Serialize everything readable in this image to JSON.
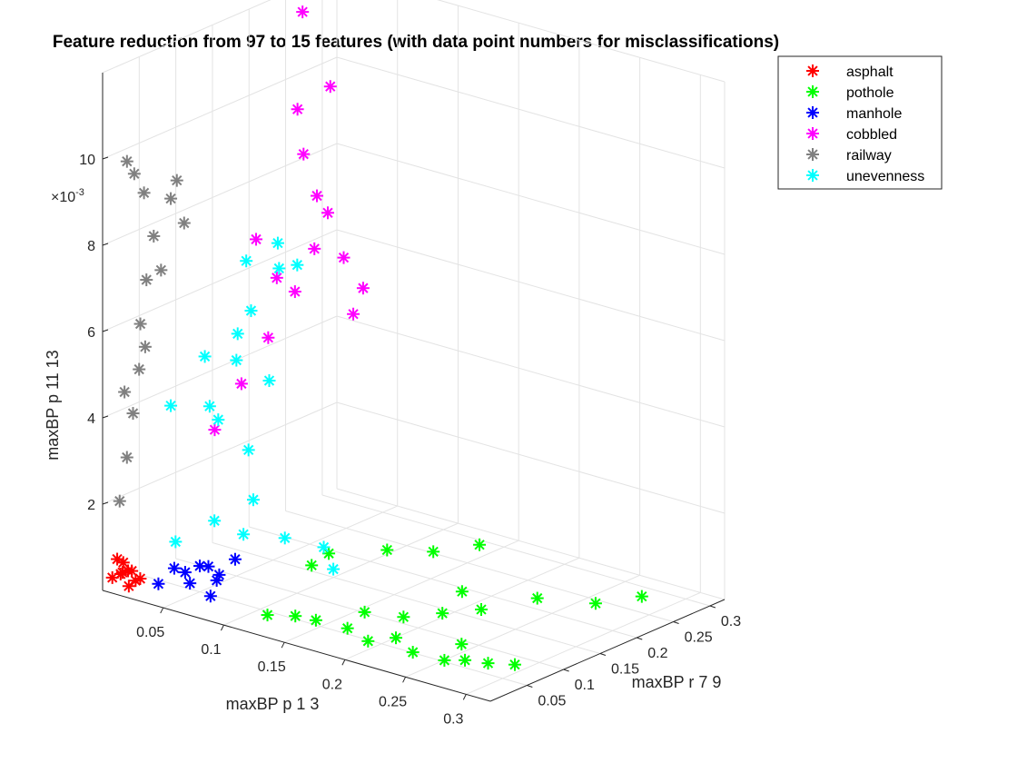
{
  "chart_data": {
    "type": "scatter",
    "title": "Feature reduction from 97 to 15 features (with data point numbers for misclassifications)",
    "xlabel": "maxBP p 1 3",
    "ylabel": "maxBP r 7 9",
    "zlabel": "maxBP p 11 13",
    "z_exponent_label": "×10",
    "z_exponent": "-3",
    "xlim": [
      0,
      0.32
    ],
    "ylim": [
      0,
      0.32
    ],
    "zlim": [
      0,
      0.012
    ],
    "x_ticks": [
      "0.05",
      "0.1",
      "0.15",
      "0.2",
      "0.25",
      "0.3"
    ],
    "y_ticks": [
      "0.05",
      "0.1",
      "0.15",
      "0.2",
      "0.25",
      "0.3"
    ],
    "z_ticks": [
      "2",
      "4",
      "6",
      "8",
      "10"
    ],
    "grid": true,
    "legend_position": "top-right",
    "marker": "asterisk",
    "series": [
      {
        "name": "asphalt",
        "color": "#ff0000",
        "points": [
          [
            0.005,
            0.005,
            0.0003
          ],
          [
            0.01,
            0.008,
            0.0004
          ],
          [
            0.015,
            0.01,
            0.0005
          ],
          [
            0.02,
            0.012,
            0.0003
          ],
          [
            0.008,
            0.015,
            0.0006
          ],
          [
            0.012,
            0.02,
            0.0004
          ],
          [
            0.018,
            0.006,
            0.0002
          ],
          [
            0.025,
            0.01,
            0.0004
          ],
          [
            0.006,
            0.01,
            0.0007
          ],
          [
            0.014,
            0.004,
            0.0005
          ]
        ]
      },
      {
        "name": "pothole",
        "color": "#00ff00",
        "points": [
          [
            0.13,
            0.01,
            0.0004
          ],
          [
            0.15,
            0.015,
            0.0005
          ],
          [
            0.17,
            0.01,
            0.0006
          ],
          [
            0.19,
            0.02,
            0.0005
          ],
          [
            0.21,
            0.015,
            0.0004
          ],
          [
            0.23,
            0.02,
            0.0006
          ],
          [
            0.25,
            0.01,
            0.0005
          ],
          [
            0.27,
            0.02,
            0.0004
          ],
          [
            0.29,
            0.015,
            0.0006
          ],
          [
            0.3,
            0.03,
            0.0005
          ],
          [
            0.31,
            0.05,
            0.0004
          ],
          [
            0.18,
            0.06,
            0.0005
          ],
          [
            0.2,
            0.08,
            0.0004
          ],
          [
            0.22,
            0.1,
            0.0005
          ],
          [
            0.24,
            0.12,
            0.0006
          ],
          [
            0.2,
            0.16,
            0.0004
          ],
          [
            0.25,
            0.18,
            0.0005
          ],
          [
            0.28,
            0.21,
            0.0004
          ],
          [
            0.3,
            0.24,
            0.0005
          ],
          [
            0.1,
            0.12,
            0.0005
          ],
          [
            0.09,
            0.16,
            0.0004
          ],
          [
            0.12,
            0.19,
            0.0005
          ],
          [
            0.14,
            0.22,
            0.0004
          ],
          [
            0.16,
            0.25,
            0.0005
          ],
          [
            0.26,
            0.06,
            0.0004
          ]
        ]
      },
      {
        "name": "manhole",
        "color": "#0000ff",
        "points": [
          [
            0.04,
            0.01,
            0.0004
          ],
          [
            0.06,
            0.02,
            0.0005
          ],
          [
            0.08,
            0.015,
            0.0004
          ],
          [
            0.05,
            0.03,
            0.0006
          ],
          [
            0.07,
            0.04,
            0.0005
          ],
          [
            0.06,
            0.06,
            0.0004
          ],
          [
            0.05,
            0.05,
            0.0006
          ],
          [
            0.035,
            0.04,
            0.0005
          ],
          [
            0.045,
            0.07,
            0.0004
          ],
          [
            0.055,
            0.09,
            0.0005
          ]
        ]
      },
      {
        "name": "cobbled",
        "color": "#ff00ff",
        "points": [
          [
            0.02,
            0.12,
            0.003
          ],
          [
            0.03,
            0.14,
            0.004
          ],
          [
            0.04,
            0.16,
            0.005
          ],
          [
            0.05,
            0.18,
            0.006
          ],
          [
            0.06,
            0.19,
            0.007
          ],
          [
            0.05,
            0.21,
            0.008
          ],
          [
            0.045,
            0.2,
            0.009
          ],
          [
            0.04,
            0.2,
            0.01
          ],
          [
            0.06,
            0.23,
            0.0065
          ],
          [
            0.07,
            0.24,
            0.0058
          ],
          [
            0.08,
            0.21,
            0.0055
          ],
          [
            0.03,
            0.16,
            0.0072
          ],
          [
            0.055,
            0.22,
            0.0105
          ],
          [
            0.02,
            0.24,
            0.0118
          ],
          [
            0.065,
            0.2,
            0.0078
          ],
          [
            0.035,
            0.18,
            0.0062
          ]
        ]
      },
      {
        "name": "railway",
        "color": "#808080",
        "points": [
          [
            0.005,
            0.015,
            0.002
          ],
          [
            0.008,
            0.02,
            0.003
          ],
          [
            0.01,
            0.025,
            0.004
          ],
          [
            0.012,
            0.03,
            0.005
          ],
          [
            0.01,
            0.035,
            0.006
          ],
          [
            0.012,
            0.04,
            0.007
          ],
          [
            0.015,
            0.045,
            0.008
          ],
          [
            0.01,
            0.04,
            0.009
          ],
          [
            0.008,
            0.03,
            0.0095
          ],
          [
            0.005,
            0.025,
            0.0098
          ],
          [
            0.02,
            0.06,
            0.0088
          ],
          [
            0.025,
            0.07,
            0.0082
          ],
          [
            0.022,
            0.065,
            0.0092
          ],
          [
            0.018,
            0.05,
            0.0072
          ],
          [
            0.006,
            0.02,
            0.0045
          ],
          [
            0.014,
            0.035,
            0.0055
          ]
        ]
      },
      {
        "name": "unevenness",
        "color": "#00ffff",
        "points": [
          [
            0.03,
            0.05,
            0.001
          ],
          [
            0.05,
            0.07,
            0.0015
          ],
          [
            0.07,
            0.09,
            0.002
          ],
          [
            0.06,
            0.1,
            0.003
          ],
          [
            0.04,
            0.08,
            0.004
          ],
          [
            0.05,
            0.1,
            0.005
          ],
          [
            0.05,
            0.12,
            0.006
          ],
          [
            0.04,
            0.13,
            0.007
          ],
          [
            0.06,
            0.14,
            0.0075
          ],
          [
            0.07,
            0.15,
            0.007
          ],
          [
            0.09,
            0.1,
            0.0012
          ],
          [
            0.11,
            0.12,
            0.001
          ],
          [
            0.13,
            0.1,
            0.0008
          ],
          [
            0.08,
            0.06,
            0.0015
          ],
          [
            0.03,
            0.09,
            0.005
          ],
          [
            0.02,
            0.06,
            0.004
          ],
          [
            0.045,
            0.11,
            0.0055
          ],
          [
            0.065,
            0.12,
            0.0045
          ],
          [
            0.055,
            0.15,
            0.0068
          ],
          [
            0.035,
            0.1,
            0.0035
          ]
        ]
      }
    ]
  }
}
